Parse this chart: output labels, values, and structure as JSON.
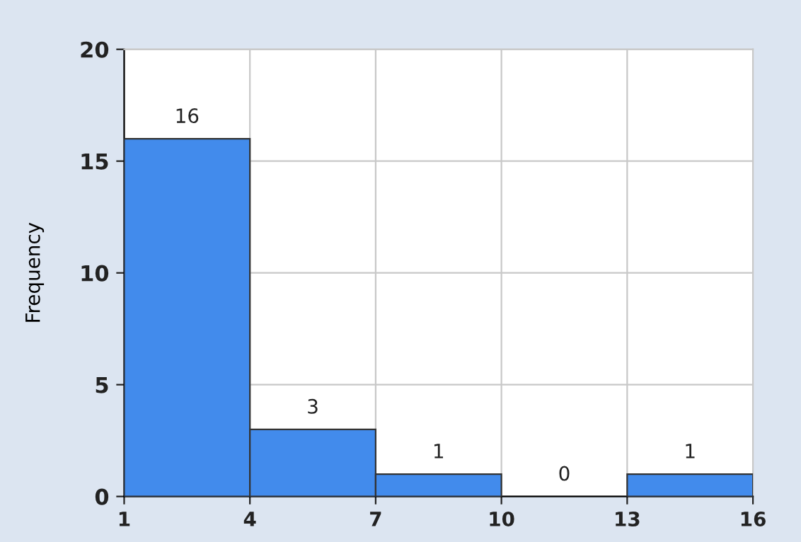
{
  "chart_data": {
    "type": "histogram",
    "ylabel": "Frequency",
    "bins": [
      1,
      4,
      7,
      10,
      13,
      16
    ],
    "values": [
      16,
      3,
      1,
      0,
      1
    ],
    "color": "#428bec",
    "xlim": [
      1,
      16
    ],
    "xticks": [
      1,
      4,
      7,
      10,
      13,
      16
    ],
    "ylim": [
      0,
      20
    ],
    "yticks": [
      0,
      5,
      10,
      15,
      20
    ],
    "grid": true,
    "data_labels": true
  }
}
